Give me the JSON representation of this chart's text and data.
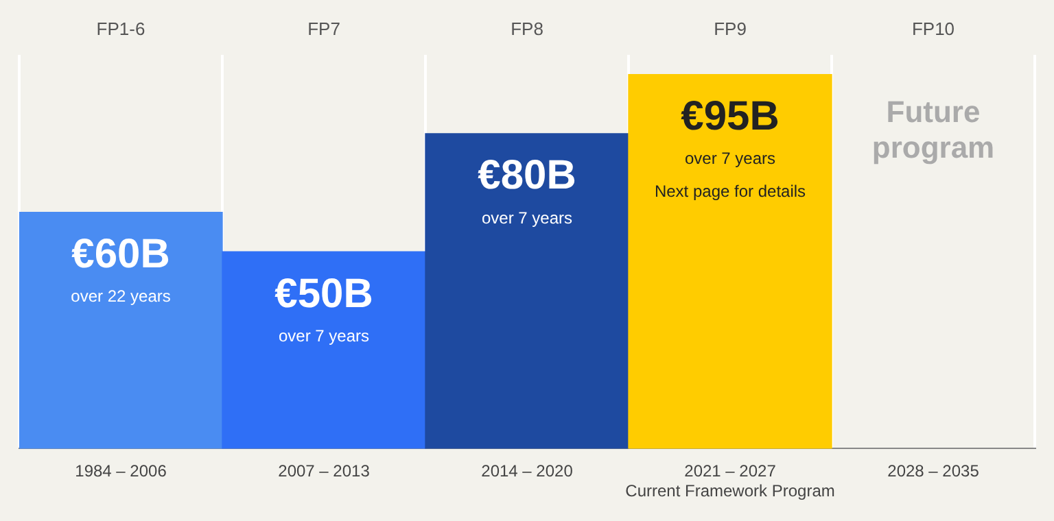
{
  "chart_data": {
    "type": "bar",
    "categories": [
      "1984 – 2006",
      "2007 – 2013",
      "2014 – 2020",
      "2021 – 2027\nCurrent Framework Program",
      "2028 – 2035"
    ],
    "values": [
      60,
      50,
      80,
      95,
      null
    ],
    "colors": [
      "#4a8cf2",
      "#2f6ff6",
      "#1e4aa0",
      "#ffcc00",
      "#dddcd6"
    ],
    "value_labels": [
      "€60B",
      "€50B",
      "€80B",
      "€95B",
      null
    ],
    "annotations": [
      "FP1-6",
      "FP7",
      "FP8",
      "FP9",
      "FP10",
      "over 22 years",
      "over 7 years",
      "over 7 years",
      "over 7 years",
      "Future program",
      "Next page for details"
    ],
    "grid": "x",
    "tick_labels": "x",
    "legend": false
  }
}
